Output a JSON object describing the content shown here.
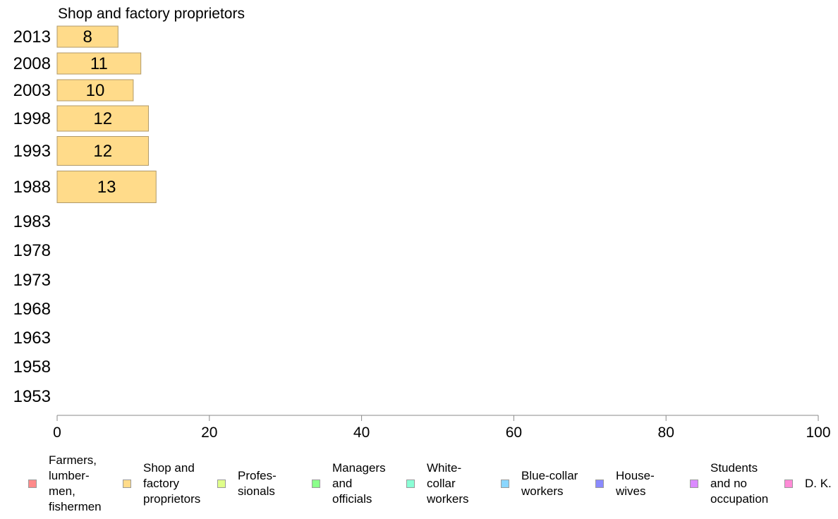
{
  "chart_data": {
    "type": "bar",
    "orientation": "horizontal",
    "title": "Shop and factory proprietors",
    "categories": [
      "2013",
      "2008",
      "2003",
      "1998",
      "1993",
      "1988",
      "1983",
      "1978",
      "1973",
      "1968",
      "1963",
      "1958",
      "1953"
    ],
    "series": [
      {
        "name": "Shop and\nfactory\nproprietors",
        "color": "#ffdb8a",
        "values": [
          8,
          11,
          10,
          12,
          12,
          13,
          null,
          null,
          null,
          null,
          null,
          null,
          null
        ]
      }
    ],
    "xlim": [
      0,
      100
    ],
    "xticks": [
      0,
      20,
      40,
      60,
      80,
      100
    ],
    "grid": false,
    "legend_position": "bottom",
    "legend": [
      {
        "label": "Farmers,\nlumber-\nmen,\nfishermen",
        "color": "#ff8a8a"
      },
      {
        "label": "Shop and\nfactory\nproprietors",
        "color": "#ffdb8a"
      },
      {
        "label": "Profes-\nsionals",
        "color": "#e0ff8a"
      },
      {
        "label": "Managers\nand\nofficials",
        "color": "#8aff8a"
      },
      {
        "label": "White-\ncollar\nworkers",
        "color": "#8affd6"
      },
      {
        "label": "Blue-collar\nworkers",
        "color": "#8ad6ff"
      },
      {
        "label": "House-\nwives",
        "color": "#8a8aff"
      },
      {
        "label": "Students\nand no\noccupation",
        "color": "#db8aff"
      },
      {
        "label": "D. K.",
        "color": "#ff8ad6"
      }
    ]
  }
}
